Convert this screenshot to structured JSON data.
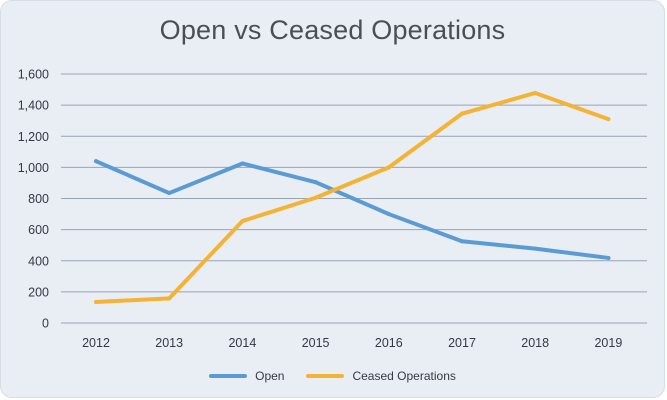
{
  "chart_data": {
    "type": "line",
    "title": "Open vs Ceased Operations",
    "xlabel": "",
    "ylabel": "",
    "categories": [
      "2012",
      "2013",
      "2014",
      "2015",
      "2016",
      "2017",
      "2018",
      "2019"
    ],
    "ylim": [
      0,
      1600
    ],
    "yticks": [
      0,
      200,
      400,
      600,
      800,
      1000,
      1200,
      1400,
      1600
    ],
    "ytick_labels": [
      "0",
      "200",
      "400",
      "600",
      "800",
      "1,000",
      "1,200",
      "1,400",
      "1,600"
    ],
    "grid": true,
    "legend_position": "bottom",
    "series": [
      {
        "name": "Open",
        "color": "#5b9bd5",
        "values": [
          1040,
          835,
          1025,
          905,
          700,
          525,
          478,
          418
        ]
      },
      {
        "name": "Ceased Operations",
        "color": "#f5b335",
        "values": [
          135,
          158,
          655,
          805,
          1000,
          1345,
          1478,
          1310
        ]
      }
    ]
  }
}
